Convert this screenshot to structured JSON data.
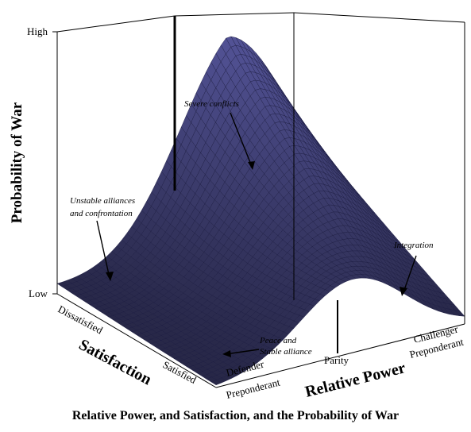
{
  "chart_data": {
    "type": "surface",
    "title": "Relative Power, and Satisfaction, and the Probability of War",
    "zlabel": "Probability of War",
    "xlabel": "Relative Power",
    "ylabel": "Satisfaction",
    "z_ticks": [
      "High",
      "Low"
    ],
    "x_ticks": [
      "Defender Preponderant",
      "Parity",
      "Challenger Preponderant"
    ],
    "y_ticks": [
      "Dissatisfied",
      "Satisfied"
    ],
    "annotations": [
      "Severe conflicts",
      "Unstable alliances and confrontation",
      "Integration",
      "Peace and Stable alliance"
    ],
    "surface_color": "#5a5aa0",
    "mesh_color": "#1a1a40"
  }
}
